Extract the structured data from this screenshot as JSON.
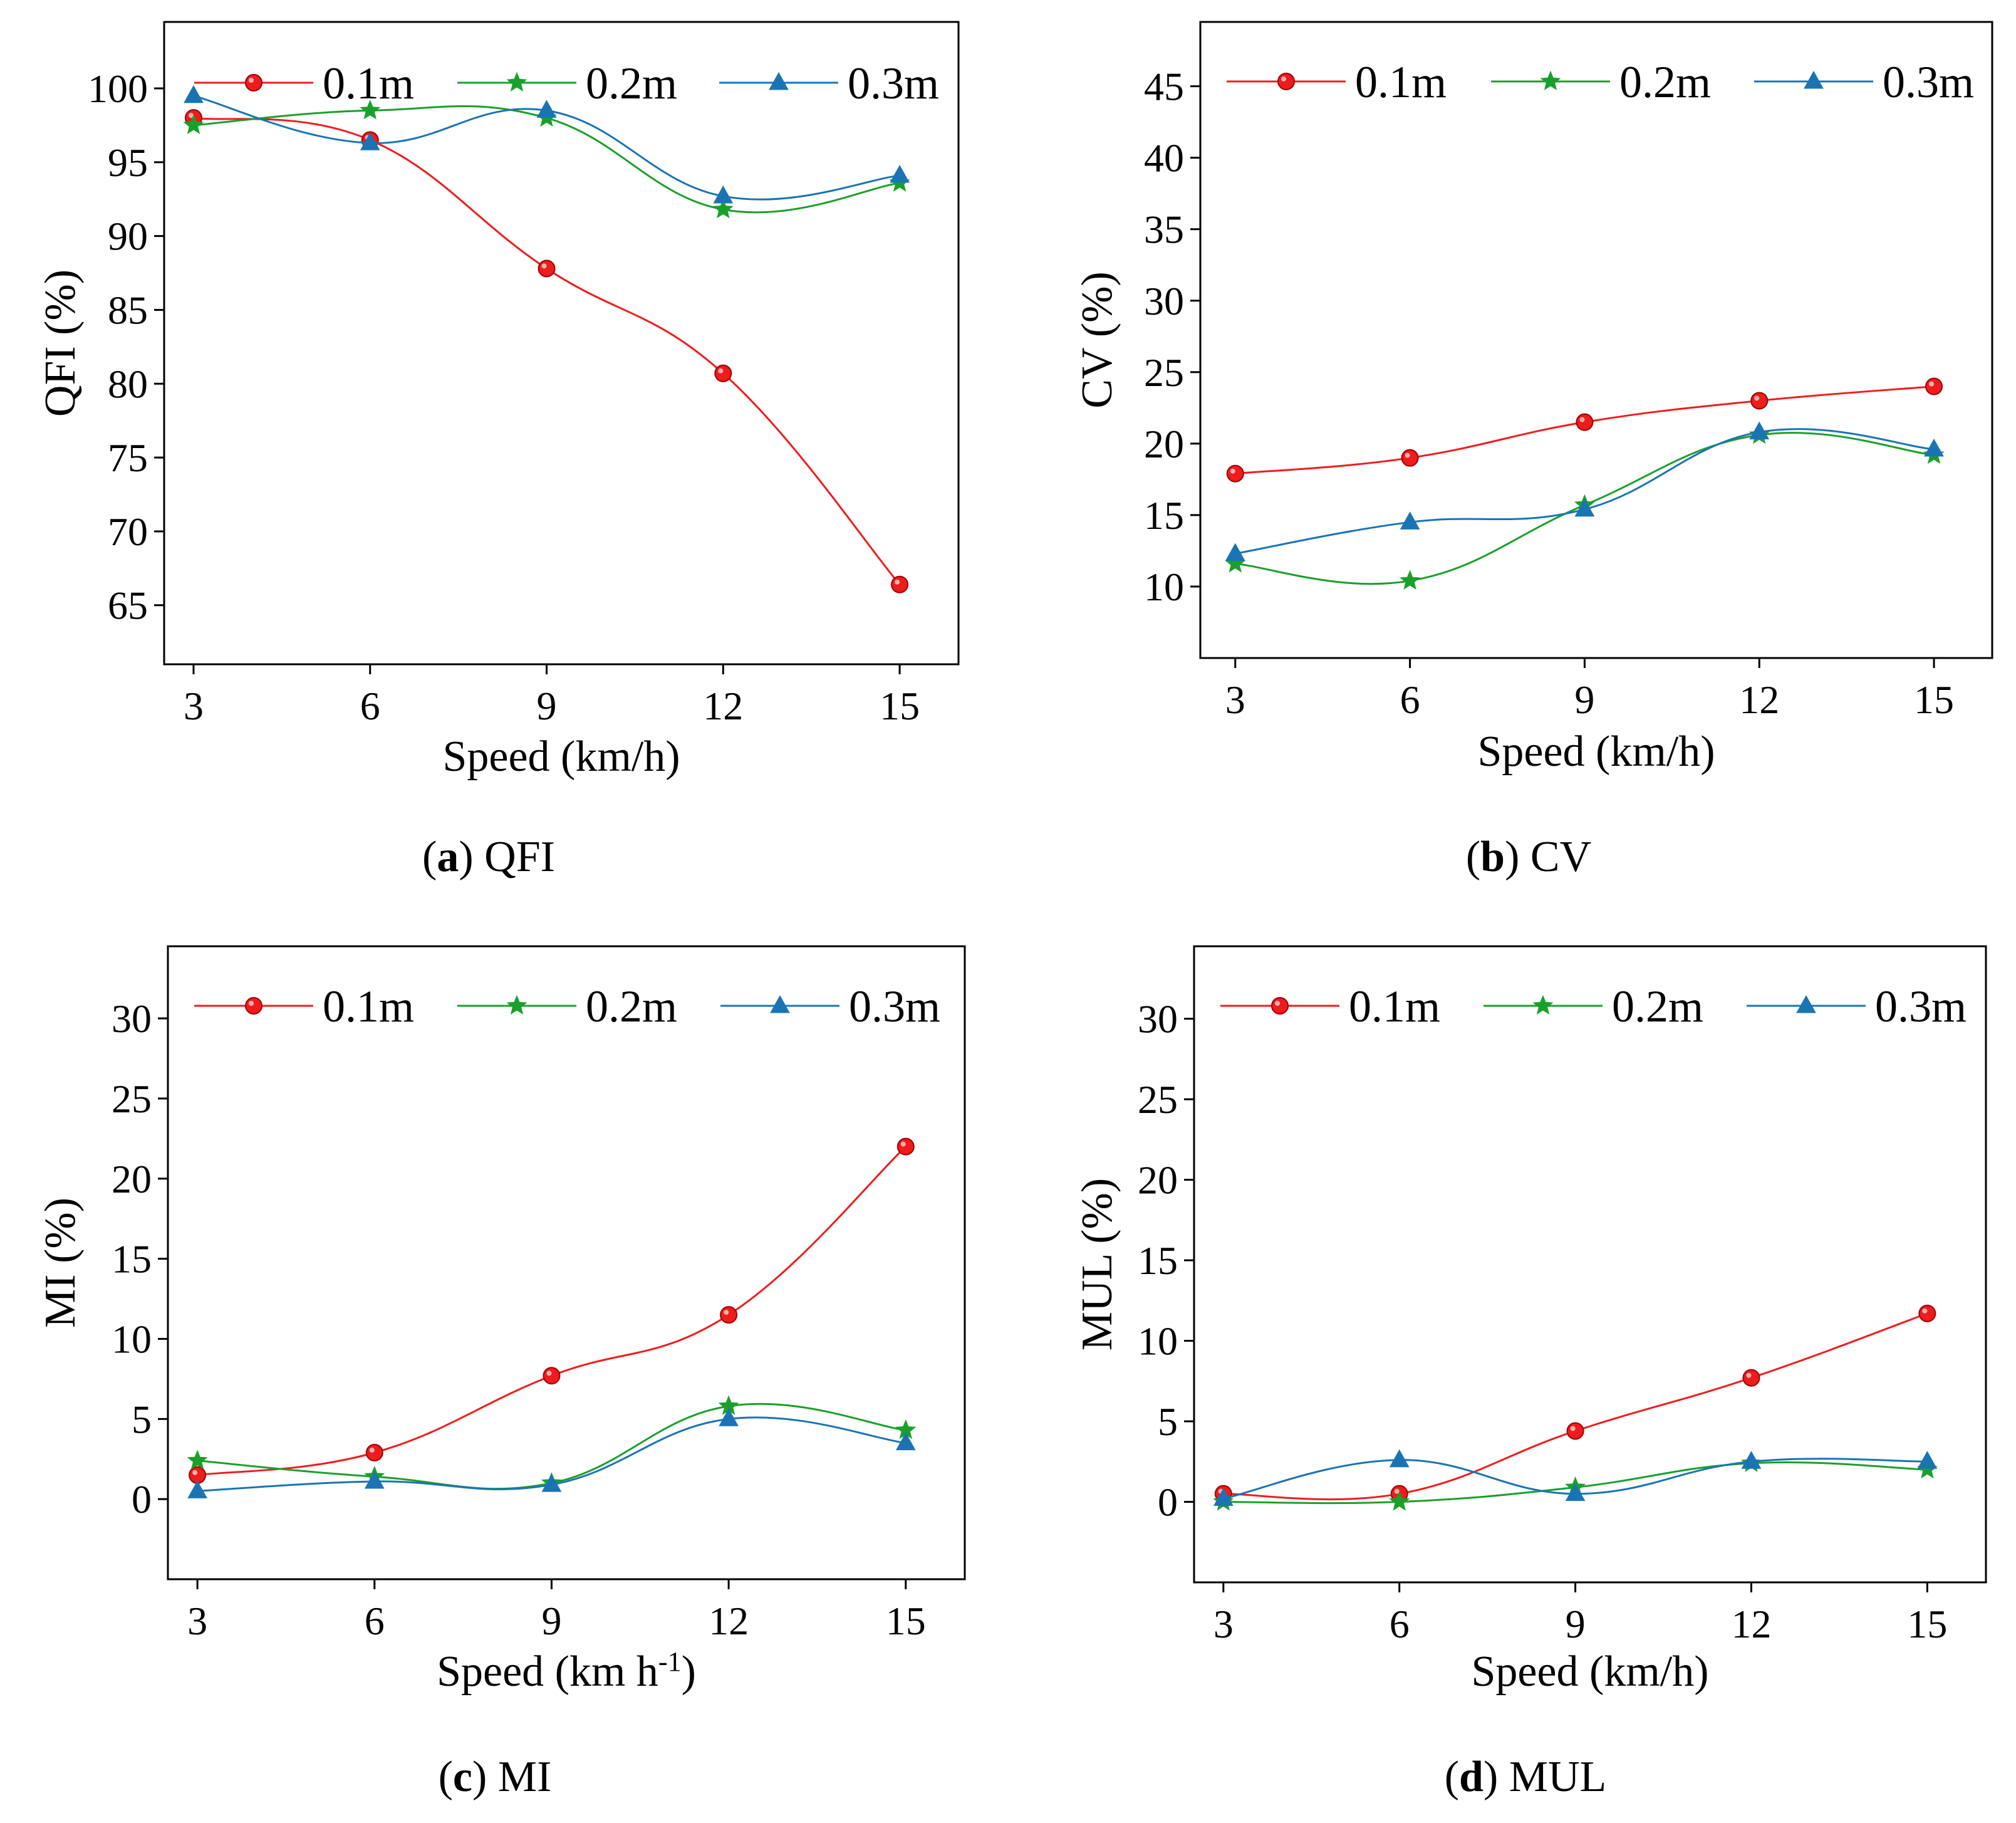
{
  "colors": {
    "0.1m": "#ee1c1c",
    "0.2m": "#1aa02a",
    "0.3m": "#1a74b4"
  },
  "legend": [
    "0.1m",
    "0.2m",
    "0.3m"
  ],
  "chart_data": [
    {
      "id": "a",
      "type": "line",
      "caption_letter": "a",
      "caption_text": " QFI",
      "xlabel": "Speed (km/h)",
      "ylabel": "QFI (%)",
      "categories": [
        3,
        6,
        9,
        12,
        15
      ],
      "x_ticks": [
        "3",
        "6",
        "9",
        "12",
        "15"
      ],
      "xlim": [
        2.5,
        16
      ],
      "ylim": [
        61,
        104.5
      ],
      "y_ticks": [
        65,
        70,
        75,
        80,
        85,
        90,
        95,
        100
      ],
      "series": [
        {
          "name": "0.1m",
          "values": [
            98.0,
            96.5,
            87.8,
            80.7,
            66.4
          ]
        },
        {
          "name": "0.2m",
          "values": [
            97.5,
            98.5,
            98.0,
            91.8,
            93.6
          ]
        },
        {
          "name": "0.3m",
          "values": [
            99.5,
            96.3,
            98.5,
            92.7,
            94.1
          ]
        }
      ]
    },
    {
      "id": "b",
      "type": "line",
      "caption_letter": "b",
      "caption_text": " CV",
      "xlabel": "Speed (km/h)",
      "ylabel": "CV (%)",
      "categories": [
        3,
        6,
        9,
        12,
        15
      ],
      "x_ticks": [
        "3",
        "6",
        "9",
        "12",
        "15"
      ],
      "xlim": [
        2.4,
        16
      ],
      "ylim": [
        5,
        49.5
      ],
      "y_ticks": [
        10,
        15,
        20,
        25,
        30,
        35,
        40,
        45
      ],
      "series": [
        {
          "name": "0.1m",
          "values": [
            17.9,
            19.0,
            21.5,
            23.0,
            24.0
          ]
        },
        {
          "name": "0.2m",
          "values": [
            11.6,
            10.4,
            15.7,
            20.6,
            19.2
          ]
        },
        {
          "name": "0.3m",
          "values": [
            12.3,
            14.5,
            15.4,
            20.8,
            19.6
          ]
        }
      ]
    },
    {
      "id": "c",
      "type": "line",
      "caption_letter": "c",
      "caption_text": " MI",
      "xlabel": "Speed (km h",
      "xlabel_sup": "-1",
      "xlabel_tail": ")",
      "ylabel": "MI (%)",
      "categories": [
        3,
        6,
        9,
        12,
        15
      ],
      "x_ticks": [
        "3",
        "6",
        "9",
        "12",
        "15"
      ],
      "xlim": [
        2.5,
        16
      ],
      "ylim": [
        -5,
        34.5
      ],
      "y_ticks": [
        0,
        5,
        10,
        15,
        20,
        25,
        30
      ],
      "series": [
        {
          "name": "0.1m",
          "values": [
            1.5,
            2.9,
            7.7,
            11.5,
            22.0
          ]
        },
        {
          "name": "0.2m",
          "values": [
            2.4,
            1.4,
            1.0,
            5.8,
            4.3
          ]
        },
        {
          "name": "0.3m",
          "values": [
            0.5,
            1.1,
            0.9,
            5.0,
            3.5
          ]
        }
      ]
    },
    {
      "id": "d",
      "type": "line",
      "caption_letter": "d",
      "caption_text": " MUL",
      "xlabel": "Speed (km/h)",
      "ylabel": "MUL (%)",
      "categories": [
        3,
        6,
        9,
        12,
        15
      ],
      "x_ticks": [
        "3",
        "6",
        "9",
        "12",
        "15"
      ],
      "xlim": [
        2.5,
        16
      ],
      "ylim": [
        -5,
        34.5
      ],
      "y_ticks": [
        0,
        5,
        10,
        15,
        20,
        25,
        30
      ],
      "series": [
        {
          "name": "0.1m",
          "values": [
            0.5,
            0.5,
            4.4,
            7.7,
            11.7
          ]
        },
        {
          "name": "0.2m",
          "values": [
            0.0,
            0.0,
            0.9,
            2.4,
            2.0
          ]
        },
        {
          "name": "0.3m",
          "values": [
            0.2,
            2.6,
            0.5,
            2.5,
            2.5
          ]
        }
      ]
    }
  ]
}
